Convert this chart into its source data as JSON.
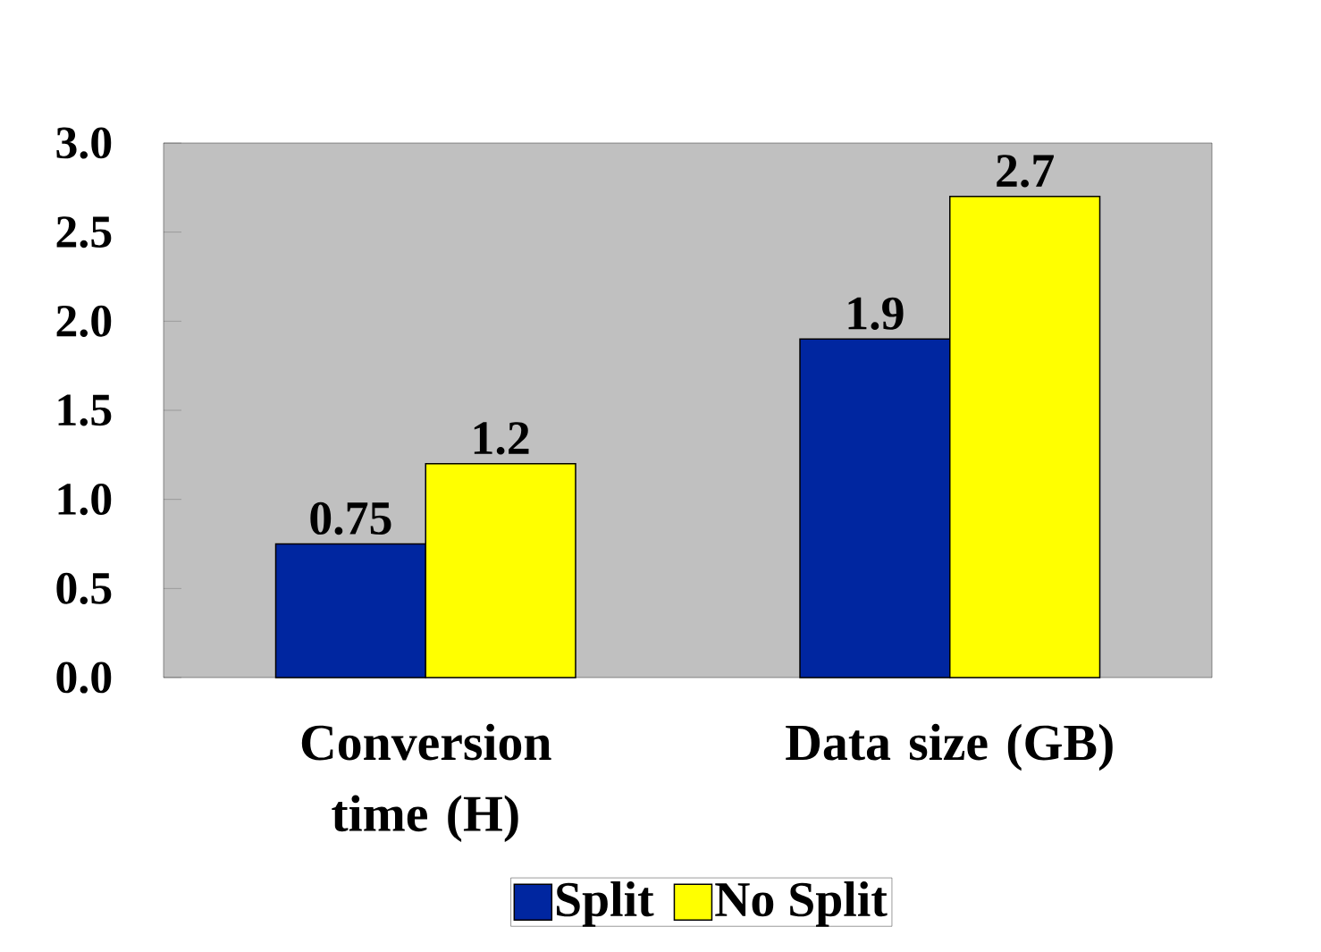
{
  "chart_data": {
    "type": "bar",
    "categories": [
      "Conversion time (H)",
      "Data size (GB)"
    ],
    "series": [
      {
        "name": "Split",
        "color": "#0026a0",
        "values": [
          0.75,
          1.9
        ]
      },
      {
        "name": "No Split",
        "color": "#ffff00",
        "values": [
          1.2,
          2.7
        ]
      }
    ],
    "ylim": [
      0,
      3
    ],
    "yticks": [
      {
        "value": 0,
        "label": "0.0"
      },
      {
        "value": 0.5,
        "label": "0.5"
      },
      {
        "value": 1,
        "label": "1.0"
      },
      {
        "value": 1.5,
        "label": "1.5"
      },
      {
        "value": 2,
        "label": "2.0"
      },
      {
        "value": 2.5,
        "label": "2.5"
      },
      {
        "value": 3,
        "label": "3.0"
      }
    ],
    "data_labels": true,
    "legend": "bottom",
    "grid": false
  }
}
